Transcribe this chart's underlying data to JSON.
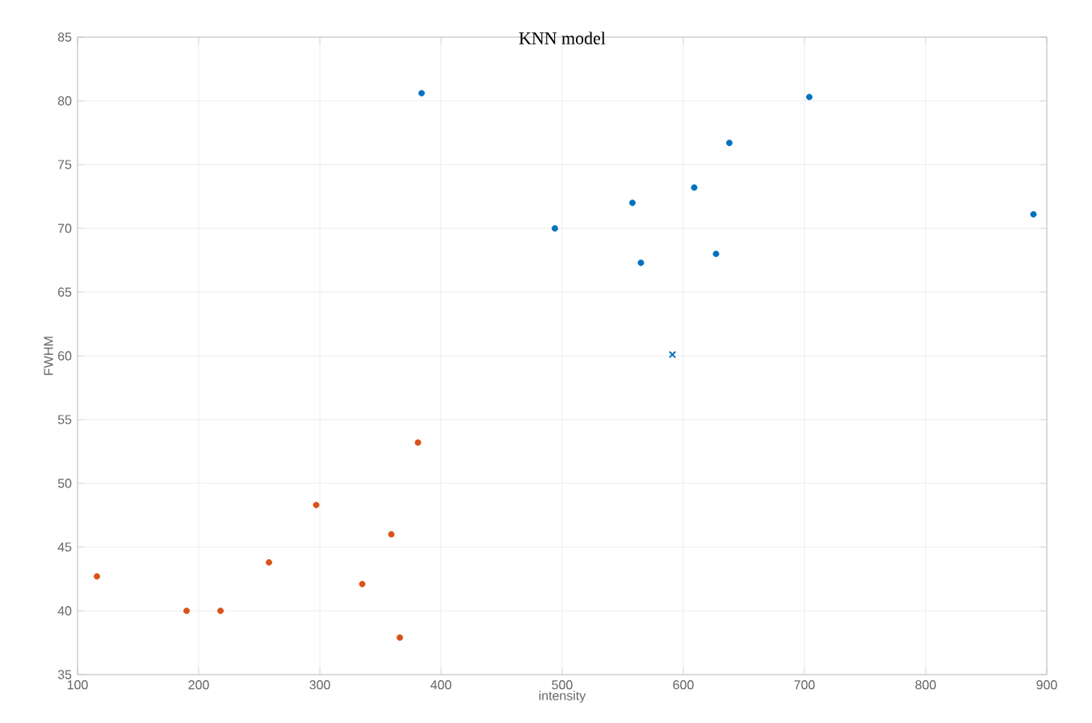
{
  "chart_data": {
    "type": "scatter",
    "title": "KNN model",
    "xlabel": "intensity",
    "ylabel": "FWHM",
    "xlim": [
      100,
      900
    ],
    "ylim": [
      35,
      85
    ],
    "xticks": [
      100,
      200,
      300,
      400,
      500,
      600,
      700,
      800,
      900
    ],
    "yticks": [
      35,
      40,
      45,
      50,
      55,
      60,
      65,
      70,
      75,
      80,
      85
    ],
    "grid": true,
    "marker": "circle",
    "series": [
      {
        "color": "#d95319",
        "x": [
          116,
          190,
          218,
          258,
          297,
          335,
          359,
          381,
          366
        ],
        "values": [
          42.7,
          40.0,
          40.0,
          43.8,
          48.3,
          42.1,
          46.0,
          53.2,
          37.9
        ]
      },
      {
        "color": "#0072bd",
        "x": [
          384,
          494,
          558,
          565,
          609,
          638,
          627,
          704,
          889
        ],
        "values": [
          80.6,
          70.0,
          72.0,
          67.3,
          73.2,
          76.7,
          68.0,
          80.3,
          71.1
        ]
      },
      {
        "color": "#0072bd",
        "marker": "cross",
        "x": [
          591
        ],
        "values": [
          60.1
        ]
      }
    ]
  }
}
